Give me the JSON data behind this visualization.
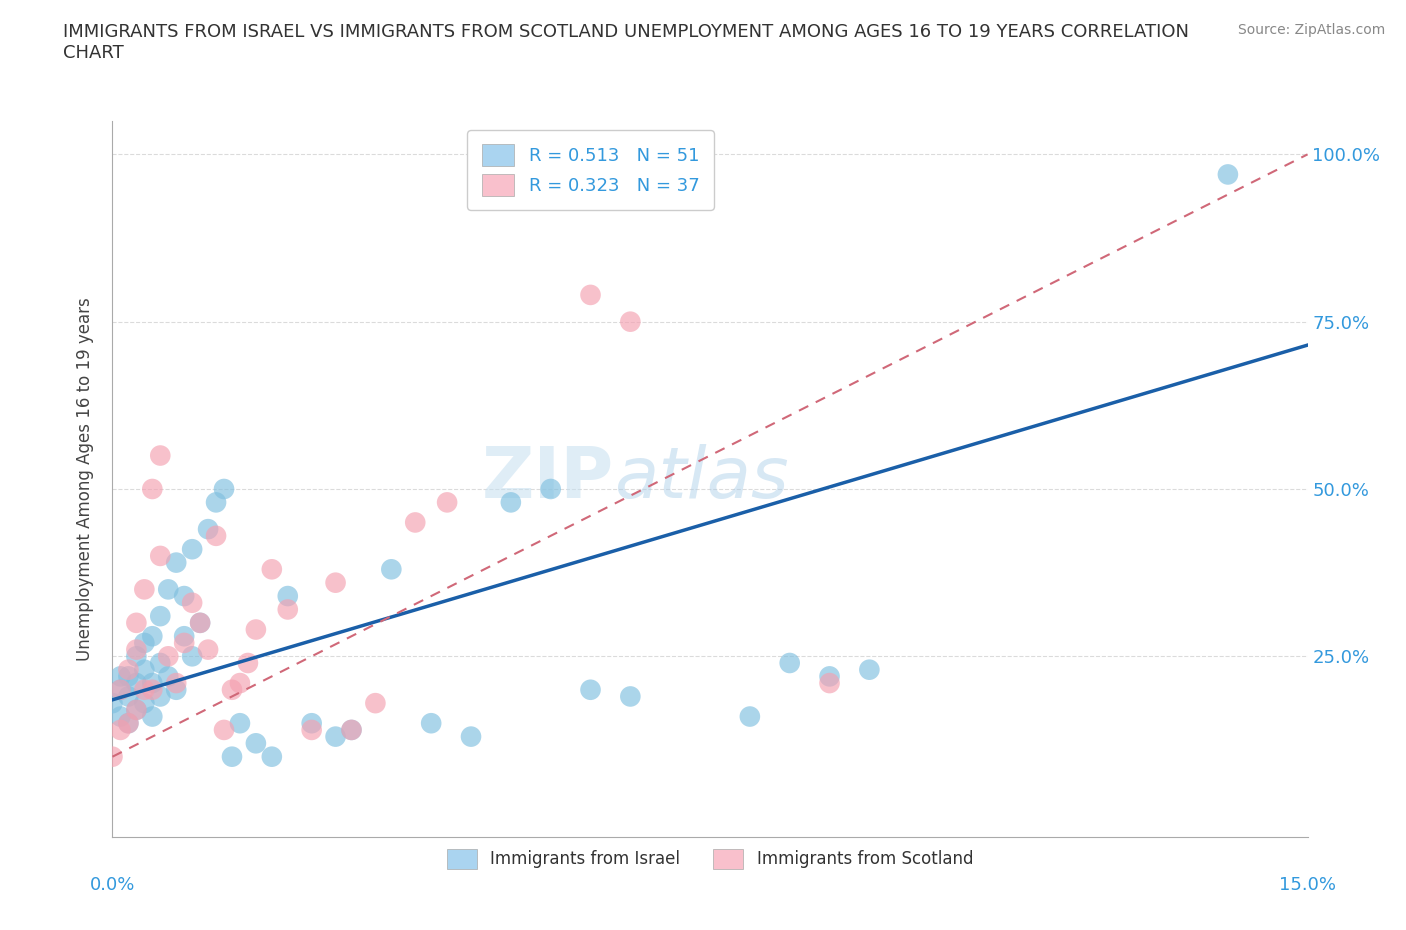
{
  "title": "IMMIGRANTS FROM ISRAEL VS IMMIGRANTS FROM SCOTLAND UNEMPLOYMENT AMONG AGES 16 TO 19 YEARS CORRELATION\nCHART",
  "source_text": "Source: ZipAtlas.com",
  "ylabel": "Unemployment Among Ages 16 to 19 years",
  "xlim": [
    0.0,
    0.15
  ],
  "ylim": [
    -0.02,
    1.05
  ],
  "yticks": [
    0.0,
    0.25,
    0.5,
    0.75,
    1.0
  ],
  "ytick_labels": [
    "",
    "25.0%",
    "50.0%",
    "75.0%",
    "100.0%"
  ],
  "xticks": [
    0.0,
    0.025,
    0.05,
    0.075,
    0.1,
    0.125,
    0.15
  ],
  "israel_color": "#7fbfdf",
  "scotland_color": "#f4a0b0",
  "israel_R": 0.513,
  "israel_N": 51,
  "scotland_R": 0.323,
  "scotland_N": 37,
  "trend_line_israel_color": "#1a5fa8",
  "trend_line_scotland_color": "#d06878",
  "watermark_ZIP": "ZIP",
  "watermark_atlas": "atlas",
  "background_color": "#ffffff",
  "grid_color": "#cccccc",
  "title_color": "#333333",
  "axis_label_color": "#3399dd",
  "legend_israel_text": "R = 0.513   N = 51",
  "legend_scotland_text": "R = 0.323   N = 37",
  "legend_israel_color": "#aad4f0",
  "legend_scotland_color": "#f9c0cc",
  "bottom_legend_israel": "Immigrants from Israel",
  "bottom_legend_scotland": "Immigrants from Scotland",
  "israel_trend_x0": 0.0,
  "israel_trend_y0": 0.185,
  "israel_trend_x1": 0.15,
  "israel_trend_y1": 0.715,
  "scotland_trend_x0": 0.0,
  "scotland_trend_y0": 0.1,
  "scotland_trend_x1": 0.15,
  "scotland_trend_y1": 1.0,
  "israel_scatter_x": [
    0.0,
    0.001,
    0.001,
    0.001,
    0.002,
    0.002,
    0.002,
    0.003,
    0.003,
    0.003,
    0.004,
    0.004,
    0.004,
    0.005,
    0.005,
    0.005,
    0.006,
    0.006,
    0.006,
    0.007,
    0.007,
    0.008,
    0.008,
    0.009,
    0.009,
    0.01,
    0.01,
    0.011,
    0.012,
    0.013,
    0.014,
    0.015,
    0.016,
    0.018,
    0.02,
    0.022,
    0.025,
    0.028,
    0.03,
    0.035,
    0.04,
    0.045,
    0.05,
    0.055,
    0.06,
    0.065,
    0.08,
    0.085,
    0.09,
    0.095,
    0.14
  ],
  "israel_scatter_y": [
    0.18,
    0.16,
    0.2,
    0.22,
    0.15,
    0.19,
    0.22,
    0.17,
    0.21,
    0.25,
    0.18,
    0.23,
    0.27,
    0.16,
    0.21,
    0.28,
    0.19,
    0.24,
    0.31,
    0.22,
    0.35,
    0.2,
    0.39,
    0.28,
    0.34,
    0.25,
    0.41,
    0.3,
    0.44,
    0.48,
    0.5,
    0.1,
    0.15,
    0.12,
    0.1,
    0.34,
    0.15,
    0.13,
    0.14,
    0.38,
    0.15,
    0.13,
    0.48,
    0.5,
    0.2,
    0.19,
    0.16,
    0.24,
    0.22,
    0.23,
    0.97
  ],
  "scotland_scatter_x": [
    0.0,
    0.001,
    0.001,
    0.002,
    0.002,
    0.003,
    0.003,
    0.003,
    0.004,
    0.004,
    0.005,
    0.005,
    0.006,
    0.006,
    0.007,
    0.008,
    0.009,
    0.01,
    0.011,
    0.012,
    0.013,
    0.014,
    0.015,
    0.016,
    0.017,
    0.018,
    0.02,
    0.022,
    0.025,
    0.028,
    0.03,
    0.033,
    0.038,
    0.042,
    0.06,
    0.065,
    0.09
  ],
  "scotland_scatter_y": [
    0.1,
    0.14,
    0.2,
    0.15,
    0.23,
    0.17,
    0.26,
    0.3,
    0.2,
    0.35,
    0.2,
    0.5,
    0.4,
    0.55,
    0.25,
    0.21,
    0.27,
    0.33,
    0.3,
    0.26,
    0.43,
    0.14,
    0.2,
    0.21,
    0.24,
    0.29,
    0.38,
    0.32,
    0.14,
    0.36,
    0.14,
    0.18,
    0.45,
    0.48,
    0.79,
    0.75,
    0.21
  ]
}
